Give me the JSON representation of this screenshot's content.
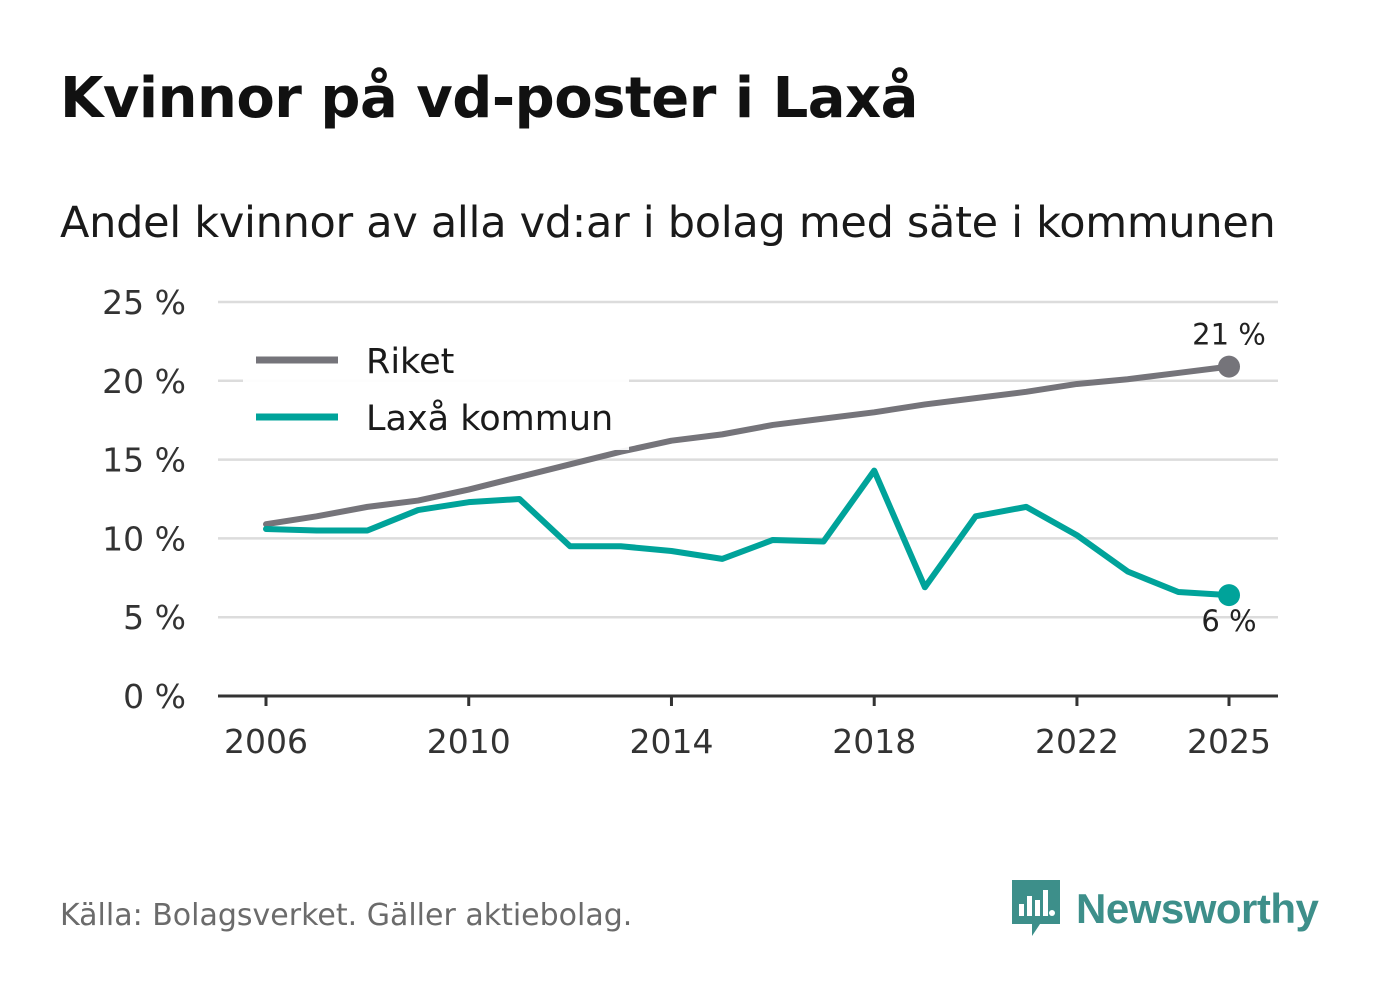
{
  "header": {
    "title": "Kvinnor på vd-poster i Laxå",
    "subtitle": "Andel kvinnor av alla vd:ar i bolag med säte i kommunen"
  },
  "footer": {
    "source": "Källa: Bolagsverket. Gäller aktiebolag.",
    "brand": "Newsworthy",
    "brand_color": "#3d8f8a"
  },
  "chart_data": {
    "type": "line",
    "title": "Kvinnor på vd-poster i Laxå",
    "subtitle": "Andel kvinnor av alla vd:ar i bolag med säte i kommunen",
    "xlabel": "",
    "ylabel": "",
    "x": [
      2006,
      2007,
      2008,
      2009,
      2010,
      2011,
      2012,
      2013,
      2014,
      2015,
      2016,
      2017,
      2018,
      2019,
      2020,
      2021,
      2022,
      2023,
      2024,
      2025
    ],
    "xticks": [
      "2006",
      "2010",
      "2014",
      "2018",
      "2022",
      "2025"
    ],
    "ylim": [
      0,
      25
    ],
    "yticks": [
      "0 %",
      "5 %",
      "10 %",
      "15 %",
      "20 %",
      "25 %"
    ],
    "grid": true,
    "legend_position": "top-left",
    "series": [
      {
        "name": "Riket",
        "color": "#75747a",
        "values": [
          10.9,
          11.4,
          12.0,
          12.4,
          13.1,
          13.9,
          14.7,
          15.5,
          16.2,
          16.6,
          17.2,
          17.6,
          18.0,
          18.5,
          18.9,
          19.3,
          19.8,
          20.1,
          20.5,
          20.9
        ],
        "end_label": "21 %"
      },
      {
        "name": "Laxå kommun",
        "color": "#00a39a",
        "values": [
          10.6,
          10.5,
          10.5,
          11.8,
          12.3,
          12.5,
          9.5,
          9.5,
          9.2,
          8.7,
          9.9,
          9.8,
          14.3,
          6.9,
          11.4,
          12.0,
          10.2,
          7.9,
          6.6,
          6.4
        ],
        "end_label": "6 %"
      }
    ]
  }
}
